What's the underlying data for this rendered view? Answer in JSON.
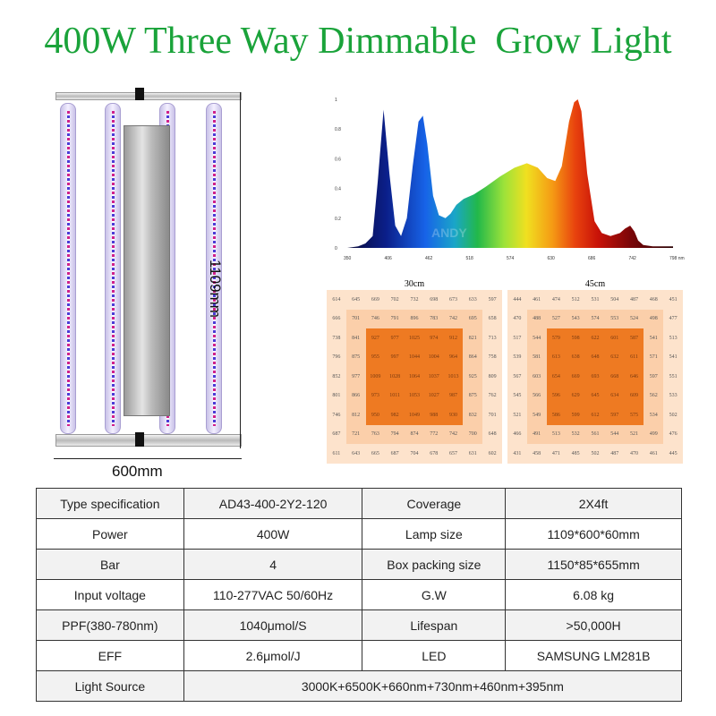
{
  "title": "400W Three Way Dimmable  Grow Light",
  "dimensions": {
    "height": "1109mm",
    "width": "600mm"
  },
  "chart_data": {
    "type": "area",
    "xticks": [
      "350",
      "406",
      "462",
      "518",
      "574",
      "630",
      "686",
      "742",
      "798 nm"
    ],
    "yticks": [
      "0",
      "0.2",
      "0.4",
      "0.6",
      "0.8",
      "1"
    ],
    "xlim": [
      350,
      798
    ],
    "ylim": [
      0,
      1
    ],
    "x": [
      350,
      365,
      375,
      385,
      392,
      400,
      408,
      416,
      424,
      432,
      440,
      448,
      454,
      460,
      468,
      476,
      485,
      492,
      500,
      510,
      524,
      540,
      560,
      580,
      597,
      612,
      625,
      636,
      645,
      655,
      662,
      667,
      672,
      680,
      690,
      700,
      712,
      725,
      732,
      739,
      745,
      750,
      757,
      770,
      798
    ],
    "y": [
      0,
      0.01,
      0.03,
      0.08,
      0.45,
      0.93,
      0.5,
      0.15,
      0.08,
      0.2,
      0.55,
      0.85,
      0.89,
      0.7,
      0.35,
      0.22,
      0.2,
      0.23,
      0.29,
      0.33,
      0.36,
      0.41,
      0.48,
      0.54,
      0.57,
      0.54,
      0.47,
      0.45,
      0.55,
      0.85,
      0.98,
      1.0,
      0.92,
      0.5,
      0.18,
      0.1,
      0.08,
      0.1,
      0.13,
      0.15,
      0.11,
      0.05,
      0.02,
      0.01,
      0.01
    ],
    "watermark": "ANDY"
  },
  "ppfd": [
    {
      "title": "30cm",
      "rows": [
        [
          "614",
          "645",
          "669",
          "702",
          "732",
          "698",
          "673",
          "633",
          "597"
        ],
        [
          "666",
          "701",
          "746",
          "791",
          "896",
          "783",
          "742",
          "695",
          "658"
        ],
        [
          "738",
          "841",
          "927",
          "977",
          "1025",
          "974",
          "912",
          "821",
          "713"
        ],
        [
          "796",
          "875",
          "955",
          "997",
          "1044",
          "1004",
          "964",
          "864",
          "758"
        ],
        [
          "852",
          "977",
          "1009",
          "1028",
          "1064",
          "1037",
          "1013",
          "925",
          "809"
        ],
        [
          "801",
          "866",
          "973",
          "1011",
          "1053",
          "1027",
          "987",
          "875",
          "762"
        ],
        [
          "746",
          "812",
          "950",
          "982",
          "1049",
          "988",
          "930",
          "832",
          "701"
        ],
        [
          "687",
          "721",
          "763",
          "794",
          "874",
          "772",
          "742",
          "700",
          "648"
        ],
        [
          "611",
          "643",
          "665",
          "687",
          "704",
          "678",
          "657",
          "631",
          "602"
        ]
      ]
    },
    {
      "title": "45cm",
      "rows": [
        [
          "444",
          "461",
          "474",
          "512",
          "531",
          "504",
          "487",
          "468",
          "451"
        ],
        [
          "470",
          "488",
          "527",
          "543",
          "574",
          "553",
          "524",
          "498",
          "477"
        ],
        [
          "517",
          "544",
          "579",
          "598",
          "622",
          "601",
          "587",
          "541",
          "513"
        ],
        [
          "539",
          "581",
          "613",
          "638",
          "648",
          "632",
          "611",
          "571",
          "541"
        ],
        [
          "567",
          "603",
          "654",
          "669",
          "693",
          "668",
          "646",
          "597",
          "551"
        ],
        [
          "545",
          "566",
          "596",
          "629",
          "645",
          "634",
          "609",
          "562",
          "533"
        ],
        [
          "521",
          "549",
          "586",
          "599",
          "612",
          "597",
          "575",
          "534",
          "502"
        ],
        [
          "466",
          "491",
          "513",
          "532",
          "561",
          "544",
          "521",
          "499",
          "476"
        ],
        [
          "431",
          "458",
          "471",
          "485",
          "502",
          "487",
          "470",
          "461",
          "445"
        ]
      ]
    }
  ],
  "specs": [
    [
      "Type specification",
      "AD43-400-2Y2-120",
      "Coverage",
      "2X4ft"
    ],
    [
      "Power",
      "400W",
      "Lamp size",
      "1109*600*60mm"
    ],
    [
      "Bar",
      "4",
      "Box packing size",
      "1150*85*655mm"
    ],
    [
      "Input voltage",
      "110-277VAC 50/60Hz",
      "G.W",
      "6.08 kg"
    ],
    [
      "PPF(380-780nm)",
      "1040μmol/S",
      "Lifespan",
      ">50,000H"
    ],
    [
      "EFF",
      "2.6μmol/J",
      "LED",
      "SAMSUNG LM281B"
    ]
  ],
  "light_source": {
    "label": "Light Source",
    "value": "3000K+6500K+660nm+730nm+460nm+395nm"
  }
}
